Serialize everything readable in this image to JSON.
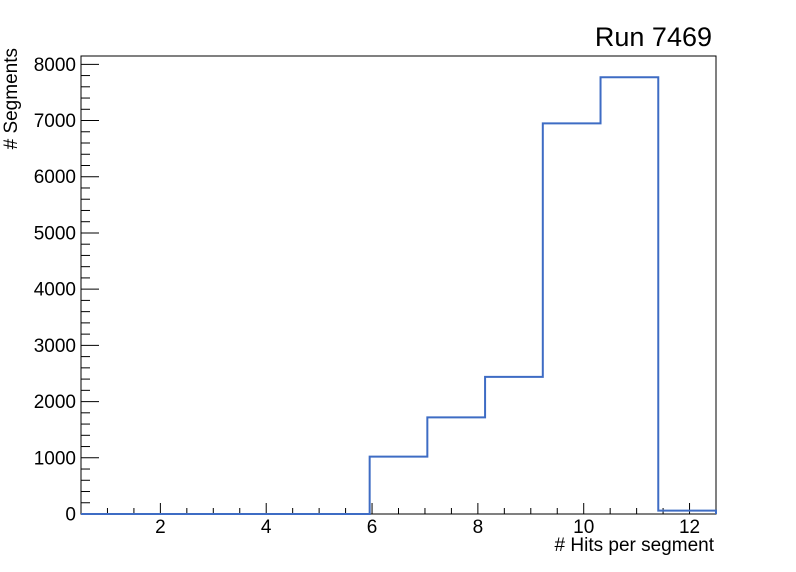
{
  "chart_data": {
    "type": "histogram",
    "title": "Run 7469",
    "xlabel": "# Hits per segment",
    "ylabel": "# Segments",
    "xlim": [
      0.5,
      12.5
    ],
    "ylim": [
      0,
      8148
    ],
    "n_bins": 11,
    "bin_edges": [
      0.5,
      1.591,
      2.682,
      3.773,
      4.864,
      5.955,
      7.045,
      8.136,
      9.227,
      10.318,
      11.409,
      12.5
    ],
    "counts": [
      0,
      0,
      0,
      0,
      0,
      1020,
      1720,
      2440,
      6950,
      7770,
      60
    ],
    "x_major_ticks": [
      2,
      4,
      6,
      8,
      10,
      12
    ],
    "x_minor_tick_step": 0.5,
    "y_major_ticks": [
      0,
      1000,
      2000,
      3000,
      4000,
      5000,
      6000,
      7000,
      8000
    ],
    "y_minor_tick_step": 200,
    "grid": false,
    "legend": null,
    "line_color": "#3e6cc4",
    "frame_color": "#000000",
    "background_color": "#ffffff"
  }
}
